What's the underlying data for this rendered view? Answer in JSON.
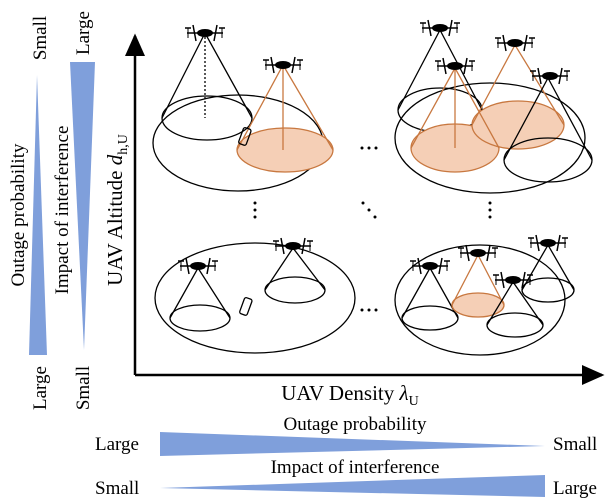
{
  "left_scale": {
    "outage": {
      "label": "Outage probability",
      "top": "Small",
      "bottom": "Large"
    },
    "interference": {
      "label": "Impact of interference",
      "top": "Large",
      "bottom": "Small"
    }
  },
  "axes": {
    "y": {
      "text": "UAV Altitude",
      "symbol": "d",
      "subscript": "h,U"
    },
    "x": {
      "text": "UAV Density",
      "symbol": "λ",
      "subscript": "U"
    }
  },
  "bottom_scale": {
    "outage": {
      "label": "Outage probability",
      "left": "Large",
      "right": "Small"
    },
    "interference": {
      "label": "Impact of interference",
      "left": "Small",
      "right": "Large"
    }
  }
}
